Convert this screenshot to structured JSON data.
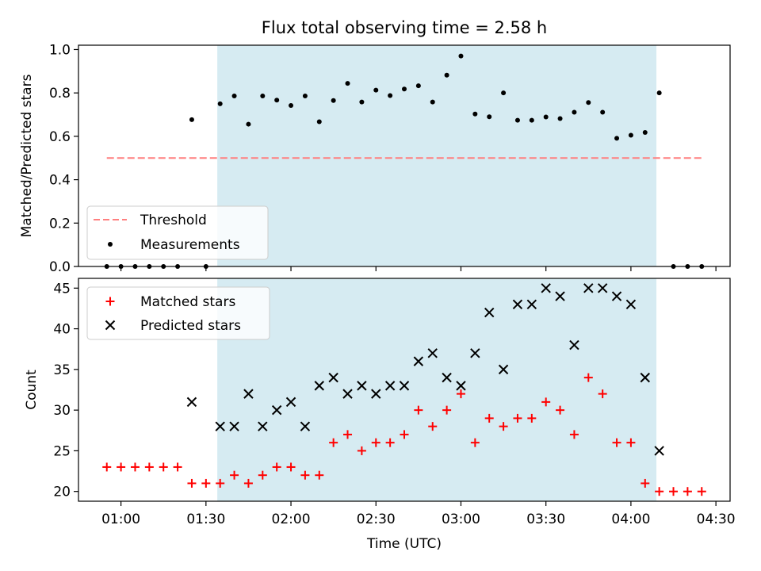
{
  "figure": {
    "title": "Flux total observing time = 2.58 h",
    "colors": {
      "shade": "#add8e6",
      "threshold": "#ff7f7f",
      "measurement": "#000000",
      "matched": "#ff0000",
      "predicted": "#000000"
    }
  },
  "chart_data": [
    {
      "type": "scatter",
      "ylabel": "Matched/Predicted stars",
      "xlabel": "",
      "xlim": [
        "00:45",
        "04:35"
      ],
      "ylim": [
        0,
        1.02
      ],
      "yticks": [
        "0.0",
        "0.2",
        "0.4",
        "0.6",
        "0.8",
        "1.0"
      ],
      "xticks": [
        "01:00",
        "01:30",
        "02:00",
        "02:30",
        "03:00",
        "03:30",
        "04:00",
        "04:30"
      ],
      "show_xtick_labels": false,
      "shaded_span": [
        "01:34",
        "04:09"
      ],
      "legend": {
        "position": "lower-left",
        "entries": [
          "Threshold",
          "Measurements"
        ]
      },
      "series": [
        {
          "name": "Threshold",
          "style": "dashed-line",
          "x": [
            "00:55",
            "04:25"
          ],
          "y": [
            0.5,
            0.5
          ]
        },
        {
          "name": "Measurements",
          "style": "dot",
          "x": [
            "00:55",
            "01:00",
            "01:05",
            "01:10",
            "01:15",
            "01:20",
            "01:25",
            "01:30",
            "01:35",
            "01:40",
            "01:45",
            "01:50",
            "01:55",
            "02:00",
            "02:05",
            "02:10",
            "02:15",
            "02:20",
            "02:25",
            "02:30",
            "02:35",
            "02:40",
            "02:45",
            "02:50",
            "02:55",
            "03:00",
            "03:05",
            "03:10",
            "03:15",
            "03:20",
            "03:25",
            "03:30",
            "03:35",
            "03:40",
            "03:45",
            "03:50",
            "03:55",
            "04:00",
            "04:05",
            "04:10",
            "04:15",
            "04:20",
            "04:25"
          ],
          "y": [
            0,
            0,
            0,
            0,
            0,
            0,
            0.677,
            0,
            0.75,
            0.786,
            0.656,
            0.786,
            0.767,
            0.742,
            0.786,
            0.667,
            0.765,
            0.844,
            0.758,
            0.813,
            0.788,
            0.818,
            0.833,
            0.758,
            0.882,
            0.97,
            0.703,
            0.69,
            0.8,
            0.674,
            0.674,
            0.689,
            0.682,
            0.711,
            0.756,
            0.711,
            0.591,
            0.605,
            0.618,
            0.8,
            0,
            0,
            0
          ]
        }
      ]
    },
    {
      "type": "scatter",
      "ylabel": "Count",
      "xlabel": "Time (UTC)",
      "xlim": [
        "00:45",
        "04:35"
      ],
      "ylim": [
        18.8,
        46.2
      ],
      "yticks": [
        "20",
        "25",
        "30",
        "35",
        "40",
        "45"
      ],
      "xticks": [
        "01:00",
        "01:30",
        "02:00",
        "02:30",
        "03:00",
        "03:30",
        "04:00",
        "04:30"
      ],
      "show_xtick_labels": true,
      "shaded_span": [
        "01:34",
        "04:09"
      ],
      "legend": {
        "position": "upper-left",
        "entries": [
          "Matched stars",
          "Predicted stars"
        ]
      },
      "series": [
        {
          "name": "Matched stars",
          "style": "plus",
          "x": [
            "00:55",
            "01:00",
            "01:05",
            "01:10",
            "01:15",
            "01:20",
            "01:25",
            "01:30",
            "01:35",
            "01:40",
            "01:45",
            "01:50",
            "01:55",
            "02:00",
            "02:05",
            "02:10",
            "02:15",
            "02:20",
            "02:25",
            "02:30",
            "02:35",
            "02:40",
            "02:45",
            "02:50",
            "02:55",
            "03:00",
            "03:05",
            "03:10",
            "03:15",
            "03:20",
            "03:25",
            "03:30",
            "03:35",
            "03:40",
            "03:45",
            "03:50",
            "03:55",
            "04:00",
            "04:05",
            "04:10",
            "04:15",
            "04:20",
            "04:25"
          ],
          "y": [
            23,
            23,
            23,
            23,
            23,
            23,
            21,
            21,
            21,
            22,
            21,
            22,
            23,
            23,
            22,
            22,
            26,
            27,
            25,
            26,
            26,
            27,
            30,
            28,
            30,
            32,
            26,
            29,
            28,
            29,
            29,
            31,
            30,
            27,
            34,
            32,
            26,
            26,
            21,
            20,
            20,
            20,
            20
          ]
        },
        {
          "name": "Predicted stars",
          "style": "x",
          "x": [
            "01:25",
            "01:35",
            "01:40",
            "01:45",
            "01:50",
            "01:55",
            "02:00",
            "02:05",
            "02:10",
            "02:15",
            "02:20",
            "02:25",
            "02:30",
            "02:35",
            "02:40",
            "02:45",
            "02:50",
            "02:55",
            "03:00",
            "03:05",
            "03:10",
            "03:15",
            "03:20",
            "03:25",
            "03:30",
            "03:35",
            "03:40",
            "03:45",
            "03:50",
            "03:55",
            "04:00",
            "04:05",
            "04:10"
          ],
          "y": [
            31,
            28,
            28,
            32,
            28,
            30,
            31,
            28,
            33,
            34,
            32,
            33,
            32,
            33,
            33,
            36,
            37,
            34,
            33,
            37,
            42,
            35,
            43,
            43,
            45,
            44,
            38,
            45,
            45,
            44,
            43,
            34,
            25
          ]
        }
      ]
    }
  ]
}
